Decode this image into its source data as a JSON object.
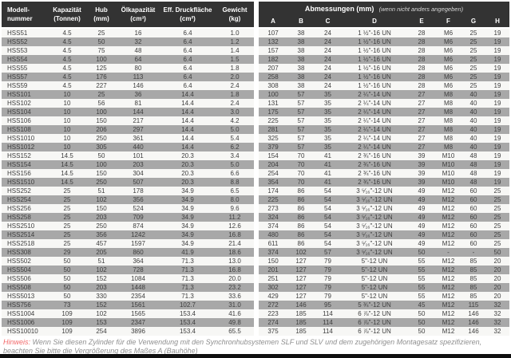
{
  "table": {
    "left_header": {
      "model": [
        "Modell-",
        "nummer"
      ],
      "capacity": [
        "Kapazität",
        "(Tonnen)"
      ],
      "stroke": [
        "Hub",
        "(mm)"
      ],
      "oil": [
        "Ölkapazität",
        "(cm³)"
      ],
      "area": [
        "Eff. Druckfläche",
        "(cm²)"
      ],
      "weight": [
        "Gewicht",
        "(kg)"
      ]
    },
    "right_header": {
      "title": "Abmessungen (mm)",
      "note": "(wenn nicht anders angegeben)",
      "cols": [
        "A",
        "B",
        "C",
        "D",
        "E",
        "F",
        "G",
        "H"
      ]
    },
    "rows": [
      [
        "HSS51",
        "4.5",
        "25",
        "16",
        "6.4",
        "1.0",
        "107",
        "38",
        "24",
        "1 ½\"-16 UN",
        "28",
        "M6",
        "25",
        "19"
      ],
      [
        "HSS52",
        "4.5",
        "50",
        "32",
        "6.4",
        "1.2",
        "132",
        "38",
        "24",
        "1 ½\"-16 UN",
        "28",
        "M6",
        "25",
        "19"
      ],
      [
        "HSS53",
        "4.5",
        "75",
        "48",
        "6.4",
        "1.4",
        "157",
        "38",
        "24",
        "1 ½\"-16 UN",
        "28",
        "M6",
        "25",
        "19"
      ],
      [
        "HSS54",
        "4.5",
        "100",
        "64",
        "6.4",
        "1.5",
        "182",
        "38",
        "24",
        "1 ½\"-16 UN",
        "28",
        "M6",
        "25",
        "19"
      ],
      [
        "HSS55",
        "4.5",
        "125",
        "80",
        "6.4",
        "1.8",
        "207",
        "38",
        "24",
        "1 ½\"-16 UN",
        "28",
        "M6",
        "25",
        "19"
      ],
      [
        "HSS57",
        "4.5",
        "176",
        "113",
        "6.4",
        "2.0",
        "258",
        "38",
        "24",
        "1 ½\"-16 UN",
        "28",
        "M6",
        "25",
        "19"
      ],
      [
        "HSS59",
        "4.5",
        "227",
        "146",
        "6.4",
        "2.4",
        "308",
        "38",
        "24",
        "1 ½\"-16 UN",
        "28",
        "M6",
        "25",
        "19"
      ],
      [
        "HSS101",
        "10",
        "25",
        "36",
        "14.4",
        "1.8",
        "100",
        "57",
        "35",
        "2 ¼\"-14 UN",
        "27",
        "M8",
        "40",
        "19"
      ],
      [
        "HSS102",
        "10",
        "56",
        "81",
        "14.4",
        "2.4",
        "131",
        "57",
        "35",
        "2 ¼\"-14 UN",
        "27",
        "M8",
        "40",
        "19"
      ],
      [
        "HSS104",
        "10",
        "100",
        "144",
        "14.4",
        "3.0",
        "175",
        "57",
        "35",
        "2 ¼\"-14 UN",
        "27",
        "M8",
        "40",
        "19"
      ],
      [
        "HSS106",
        "10",
        "150",
        "217",
        "14.4",
        "4.2",
        "225",
        "57",
        "35",
        "2 ¼\"-14 UN",
        "27",
        "M8",
        "40",
        "19"
      ],
      [
        "HSS108",
        "10",
        "206",
        "297",
        "14.4",
        "5.0",
        "281",
        "57",
        "35",
        "2 ¼\"-14 UN",
        "27",
        "M8",
        "40",
        "19"
      ],
      [
        "HSS1010",
        "10",
        "250",
        "361",
        "14.4",
        "5.4",
        "325",
        "57",
        "35",
        "2 ¼\"-14 UN",
        "27",
        "M8",
        "40",
        "19"
      ],
      [
        "HSS1012",
        "10",
        "305",
        "440",
        "14.4",
        "6.2",
        "379",
        "57",
        "35",
        "2 ¼\"-14 UN",
        "27",
        "M8",
        "40",
        "19"
      ],
      [
        "HSS152",
        "14.5",
        "50",
        "101",
        "20.3",
        "3.4",
        "154",
        "70",
        "41",
        "2 ¾\"-16 UN",
        "39",
        "M10",
        "48",
        "19"
      ],
      [
        "HSS154",
        "14.5",
        "100",
        "203",
        "20.3",
        "5.0",
        "204",
        "70",
        "41",
        "2 ¾\"-16 UN",
        "39",
        "M10",
        "48",
        "19"
      ],
      [
        "HSS156",
        "14.5",
        "150",
        "304",
        "20.3",
        "6.6",
        "254",
        "70",
        "41",
        "2 ¾\"-16 UN",
        "39",
        "M10",
        "48",
        "19"
      ],
      [
        "HSS1510",
        "14.5",
        "250",
        "507",
        "20.3",
        "8.8",
        "354",
        "70",
        "41",
        "2 ¾\"-16 UN",
        "39",
        "M10",
        "48",
        "19"
      ],
      [
        "HSS252",
        "25",
        "51",
        "178",
        "34.9",
        "6.5",
        "174",
        "86",
        "54",
        "3 ⁵⁄₁₆\"-12 UN",
        "49",
        "M12",
        "60",
        "25"
      ],
      [
        "HSS254",
        "25",
        "102",
        "356",
        "34.9",
        "8.0",
        "225",
        "86",
        "54",
        "3 ⁵⁄₁₆\"-12 UN",
        "49",
        "M12",
        "60",
        "25"
      ],
      [
        "HSS256",
        "25",
        "150",
        "524",
        "34.9",
        "9.6",
        "273",
        "86",
        "54",
        "3 ⁵⁄₁₆\"-12 UN",
        "49",
        "M12",
        "60",
        "25"
      ],
      [
        "HSS258",
        "25",
        "203",
        "709",
        "34.9",
        "11.2",
        "324",
        "86",
        "54",
        "3 ⁵⁄₁₆\"-12 UN",
        "49",
        "M12",
        "60",
        "25"
      ],
      [
        "HSS2510",
        "25",
        "250",
        "874",
        "34.9",
        "12.6",
        "374",
        "86",
        "54",
        "3 ⁵⁄₁₆\"-12 UN",
        "49",
        "M12",
        "60",
        "25"
      ],
      [
        "HSS2514",
        "25",
        "356",
        "1242",
        "34.9",
        "16.8",
        "480",
        "86",
        "54",
        "3 ⁵⁄₁₆\"-12 UN",
        "49",
        "M12",
        "60",
        "25"
      ],
      [
        "HSS2518",
        "25",
        "457",
        "1597",
        "34.9",
        "21.4",
        "611",
        "86",
        "54",
        "3 ⁵⁄₁₆\"-12 UN",
        "49",
        "M12",
        "60",
        "25"
      ],
      [
        "HSS308",
        "29",
        "205",
        "860",
        "41.9",
        "18.6",
        "374",
        "102",
        "57",
        "3 ⁵⁄₁₆\"-12 UN",
        "50",
        "-",
        "-",
        "50"
      ],
      [
        "HSS502",
        "50",
        "51",
        "364",
        "71.3",
        "13.0",
        "150",
        "127",
        "79",
        "5\"-12 UN",
        "55",
        "M12",
        "85",
        "20"
      ],
      [
        "HSS504",
        "50",
        "102",
        "728",
        "71.3",
        "16.8",
        "201",
        "127",
        "79",
        "5\"-12 UN",
        "55",
        "M12",
        "85",
        "20"
      ],
      [
        "HSS506",
        "50",
        "152",
        "1084",
        "71.3",
        "20.0",
        "251",
        "127",
        "79",
        "5\"-12 UN",
        "55",
        "M12",
        "85",
        "20"
      ],
      [
        "HSS508",
        "50",
        "203",
        "1448",
        "71.3",
        "23.2",
        "302",
        "127",
        "79",
        "5\"-12 UN",
        "55",
        "M12",
        "85",
        "20"
      ],
      [
        "HSS5013",
        "50",
        "330",
        "2354",
        "71.3",
        "33.6",
        "429",
        "127",
        "79",
        "5\"-12 UN",
        "55",
        "M12",
        "85",
        "20"
      ],
      [
        "HSS756",
        "73",
        "152",
        "1561",
        "102.7",
        "31.0",
        "272",
        "146",
        "95",
        "5 ¾\"-12 UN",
        "45",
        "M12",
        "115",
        "32"
      ],
      [
        "HSS1004",
        "109",
        "102",
        "1565",
        "153.4",
        "41.6",
        "223",
        "185",
        "114",
        "6 ⅞\"-12 UN",
        "50",
        "M12",
        "146",
        "32"
      ],
      [
        "HSS1006",
        "109",
        "153",
        "2347",
        "153.4",
        "49.8",
        "274",
        "185",
        "114",
        "6 ⅞\"-12 UN",
        "50",
        "M12",
        "146",
        "32"
      ],
      [
        "HSS10010",
        "109",
        "254",
        "3896",
        "153.4",
        "65.5",
        "375",
        "185",
        "114",
        "6 ⅞\"-12 UN",
        "50",
        "M12",
        "146",
        "32"
      ]
    ]
  },
  "footer": {
    "label": "Hinweis:",
    "text": " Wenn Sie diesen Zylinder für die Verwendung mit den Synchronhubsystemen SLF und SLV und dem zugehörigen Montagesatz spezifizieren, beachten Sie bitte die Vergrößerung des Maßes A (Bauhöhe)"
  },
  "colors": {
    "header_bg": "#333333",
    "row_white": "#f7f7f5",
    "row_gray": "#a8a8a8",
    "hinweis_red": "#f2696a",
    "footer_text": "#8f8f8f"
  }
}
